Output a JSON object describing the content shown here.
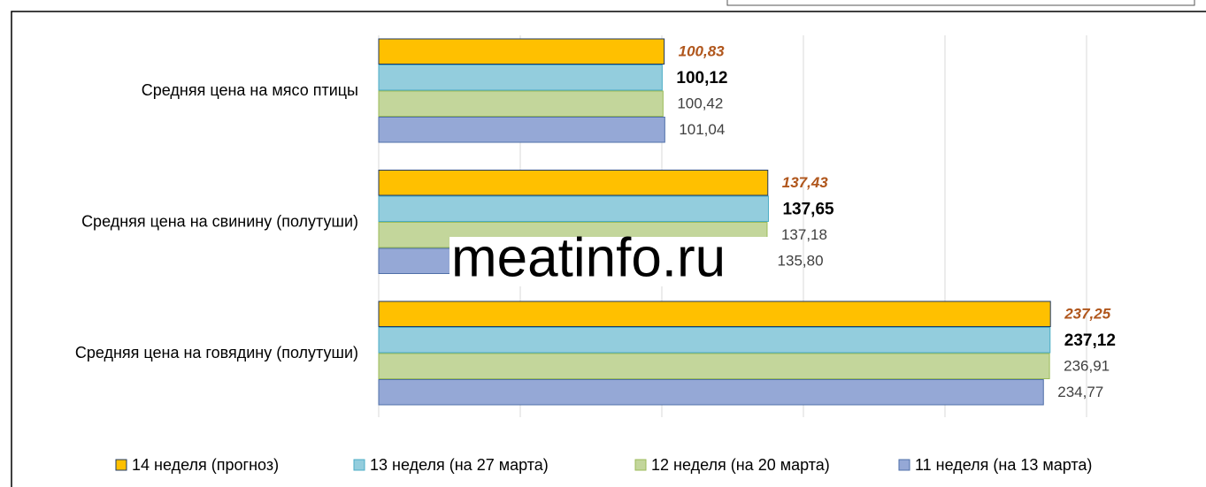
{
  "chart_data": {
    "type": "bar",
    "orientation": "horizontal",
    "categories": [
      "Средняя цена на мясо птицы",
      "Средняя цена на свинину (полутуши)",
      "Средняя цена на говядину (полутуши)"
    ],
    "series": [
      {
        "name": "14 неделя (прогноз)",
        "color": "#FFC000",
        "values": [
          100.83,
          137.43,
          237.25
        ],
        "value_labels": [
          "100,83",
          "137,43",
          "237,25"
        ]
      },
      {
        "name": "13 неделя (на 27 марта)",
        "color": "#93CDDD",
        "values": [
          100.12,
          137.65,
          237.12
        ],
        "value_labels": [
          "100,12",
          "137,65",
          "237,12"
        ]
      },
      {
        "name": "12 неделя (на 20 марта)",
        "color": "#C3D69B",
        "values": [
          100.42,
          137.18,
          236.91
        ],
        "value_labels": [
          "100,42",
          "137,18",
          "236,91"
        ]
      },
      {
        "name": "11 неделя (на 13 марта)",
        "color": "#95A8D6",
        "values": [
          101.04,
          135.8,
          234.77
        ],
        "value_labels": [
          "101,04",
          "135,80",
          "234,77"
        ]
      }
    ],
    "xlim": [
      0,
      250
    ],
    "xticks": [
      0,
      50,
      100,
      150,
      200,
      250
    ],
    "grid": true,
    "watermark": "meatinfo.ru"
  }
}
